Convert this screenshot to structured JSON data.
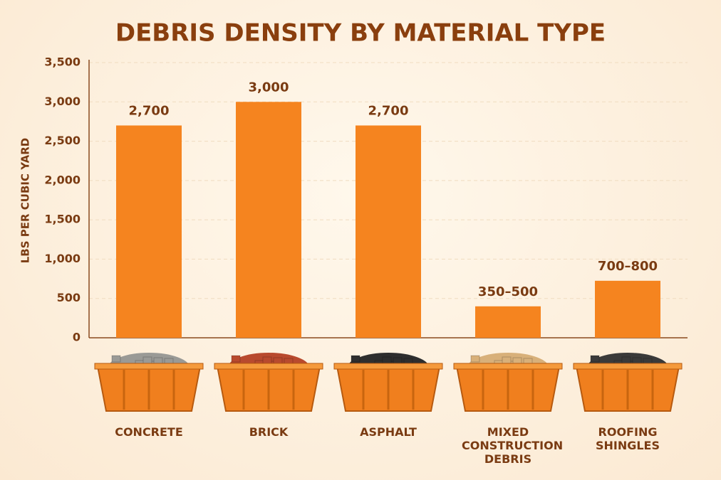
{
  "chart_data": {
    "type": "bar",
    "title": "DEBRIS DENSITY BY MATERIAL TYPE",
    "y_label": "LBS PER CUBIC YARD",
    "categories": [
      "CONCRETE",
      "BRICK",
      "ASPHALT",
      "MIXED CONSTRUCTION DEBRIS",
      "ROOFING SHINGLES"
    ],
    "values": [
      2700,
      3000,
      2700,
      400,
      725
    ],
    "value_labels": [
      "2,700",
      "3,000",
      "2,700",
      "350–500",
      "700–800"
    ],
    "color": "#f5841f",
    "ylim": [
      0,
      3500
    ],
    "yticks": [
      0,
      500,
      {
        "value": 1000,
        "label": "1,000"
      },
      {
        "value": 1500,
        "label": "1,500"
      },
      {
        "value": 2000,
        "label": "2,000"
      },
      {
        "value": 2500,
        "label": "2,500"
      },
      {
        "value": 3000,
        "label": "3,000"
      },
      {
        "value": 3500,
        "label": "3,500"
      }
    ],
    "grid": true
  }
}
